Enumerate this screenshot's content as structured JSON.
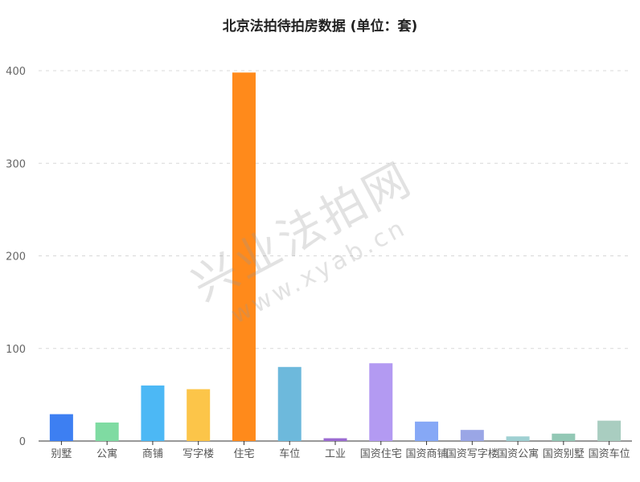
{
  "chart_data": {
    "type": "bar",
    "title": "北京法拍待拍房数据 (单位：套)",
    "categories": [
      "别墅",
      "公寓",
      "商铺",
      "写字楼",
      "住宅",
      "车位",
      "工业",
      "国资住宅",
      "国资商铺",
      "国资写字楼",
      "国资公寓",
      "国资别墅",
      "国资车位"
    ],
    "values": [
      29,
      20,
      60,
      56,
      398,
      80,
      3,
      84,
      21,
      12,
      5,
      8,
      22
    ],
    "colors": [
      "#3d7ff2",
      "#7fdba2",
      "#4cb8f5",
      "#fcc549",
      "#ff8a1b",
      "#6db9dc",
      "#9b6bd1",
      "#b39af2",
      "#86a8f6",
      "#9aa6e6",
      "#9fd0d2",
      "#93c8b5",
      "#a9cdc0"
    ],
    "ylim": [
      0,
      400
    ],
    "yticks": [
      0,
      100,
      200,
      300,
      400
    ],
    "grid": true,
    "legend": "none"
  },
  "watermark": {
    "main": "兴业法拍网",
    "sub": "www.xyab.cn"
  }
}
